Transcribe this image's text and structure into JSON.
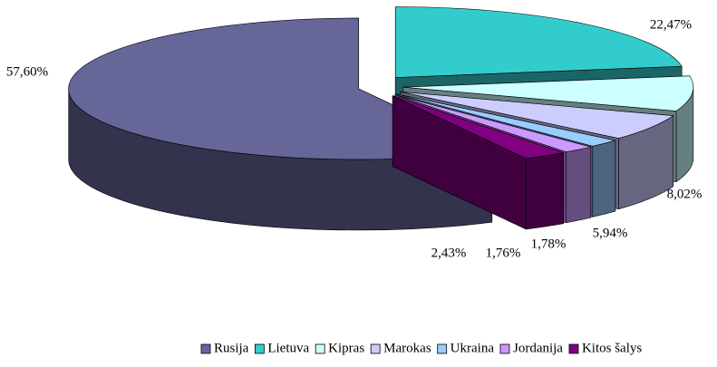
{
  "chart_data": {
    "type": "pie3d",
    "categories": [
      "Rusija",
      "Lietuva",
      "Kipras",
      "Marokas",
      "Ukraina",
      "Jordanija",
      "Kitos šalys"
    ],
    "values": [
      57.6,
      22.47,
      8.02,
      5.94,
      1.78,
      1.76,
      2.43
    ],
    "value_labels": [
      "57,60%",
      "22,47%",
      "8,02%",
      "5,94%",
      "1,78%",
      "1,76%",
      "2,43%"
    ],
    "colors": [
      "#666699",
      "#33CCCC",
      "#CCFFFF",
      "#CCCCFF",
      "#99CCFF",
      "#CC99FF",
      "#800080"
    ],
    "legend": "bottom"
  }
}
